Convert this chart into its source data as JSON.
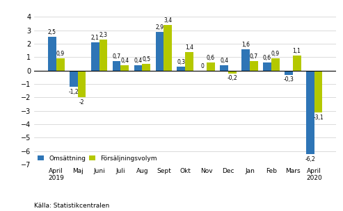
{
  "categories": [
    "April\n2019",
    "Maj",
    "Juni",
    "Juli",
    "Aug",
    "Sept",
    "Okt",
    "Nov",
    "Dec",
    "Jan",
    "Feb",
    "Mars",
    "April\n2020"
  ],
  "omsattning": [
    2.5,
    -1.2,
    2.1,
    0.7,
    0.4,
    2.9,
    0.3,
    0.0,
    0.4,
    1.6,
    0.6,
    -0.3,
    -6.2
  ],
  "forsaljningsvolym": [
    0.9,
    -2.0,
    2.3,
    0.4,
    0.5,
    3.4,
    1.4,
    0.6,
    -0.2,
    0.7,
    0.9,
    1.1,
    -3.1
  ],
  "color_omsattning": "#2e75b6",
  "color_forsaljning": "#b4c800",
  "ylim": [
    -7,
    4
  ],
  "yticks": [
    -7,
    -6,
    -5,
    -4,
    -3,
    -2,
    -1,
    0,
    1,
    2,
    3,
    4
  ],
  "legend_omsattning": "Omsättning",
  "legend_forsaljning": "Försäljningsvolym",
  "source": "Källa: Statistikcentralen",
  "background_color": "#ffffff",
  "grid_color": "#cccccc"
}
